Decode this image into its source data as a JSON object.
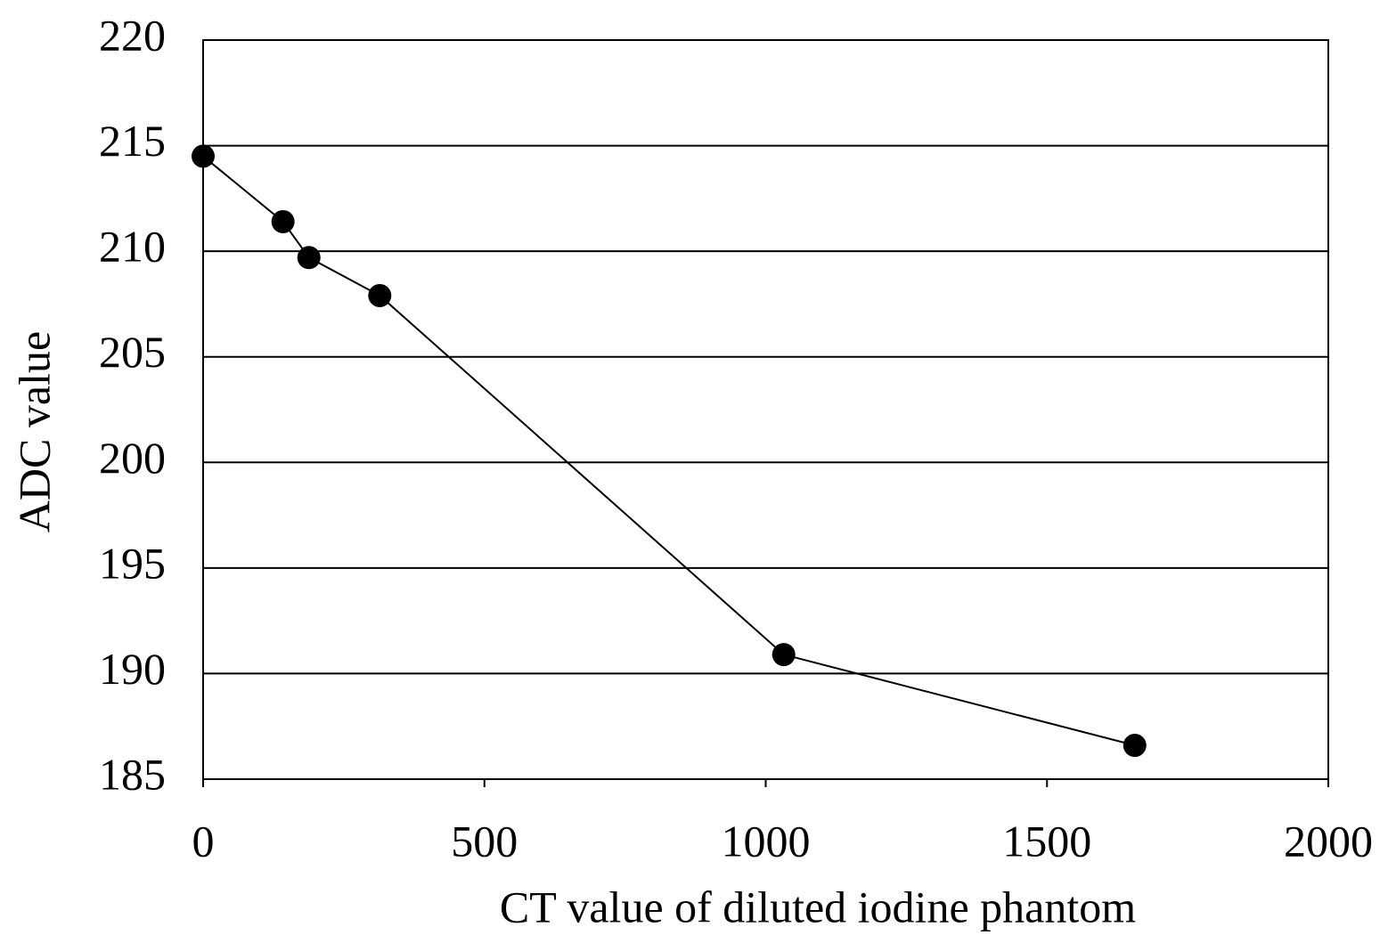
{
  "chart_data": {
    "type": "line",
    "xlabel": "CT value of diluted iodine phantom",
    "ylabel": "ADC value",
    "x": [
      0,
      142,
      188,
      314,
      1032,
      1656
    ],
    "series": [
      {
        "name": "ADC",
        "color": "#000000",
        "values": [
          214.5,
          211.4,
          209.7,
          207.9,
          190.9,
          186.6
        ]
      }
    ],
    "xlim": [
      0,
      2000
    ],
    "xticks": [
      0,
      500,
      1000,
      1500,
      2000
    ],
    "ylim": [
      185,
      220
    ],
    "yticks": [
      185,
      190,
      195,
      200,
      205,
      210,
      215,
      220
    ],
    "grid": true,
    "markers": true
  }
}
